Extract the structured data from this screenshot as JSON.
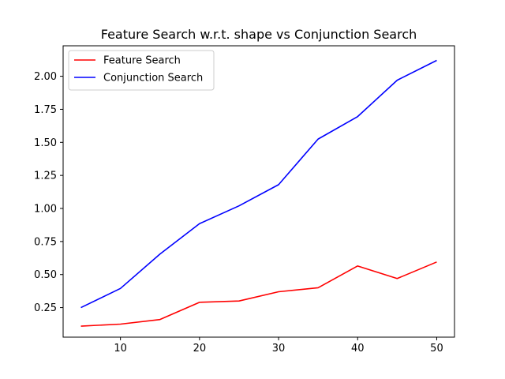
{
  "chart_data": {
    "type": "line",
    "title": "Feature Search w.r.t. shape vs Conjunction Search",
    "xlabel": "",
    "ylabel": "",
    "x": [
      5,
      10,
      15,
      20,
      25,
      30,
      35,
      40,
      45,
      50
    ],
    "xlim": [
      2.75,
      52.25
    ],
    "ylim": [
      0.0265,
      2.2305
    ],
    "xticks": [
      10,
      20,
      30,
      40,
      50
    ],
    "yticks": [
      0.25,
      0.5,
      0.75,
      1.0,
      1.25,
      1.5,
      1.75,
      2.0
    ],
    "ytick_labels": [
      "0.25",
      "0.50",
      "0.75",
      "1.00",
      "1.25",
      "1.50",
      "1.75",
      "2.00"
    ],
    "grid": false,
    "legend_position": "upper-left",
    "series": [
      {
        "name": "Feature Search",
        "color": "#ff0000",
        "values": [
          0.11,
          0.125,
          0.16,
          0.29,
          0.3,
          0.37,
          0.4,
          0.565,
          0.47,
          0.595
        ]
      },
      {
        "name": "Conjunction Search",
        "color": "#0000ff",
        "values": [
          0.25,
          0.395,
          0.655,
          0.885,
          1.02,
          1.18,
          1.525,
          1.695,
          1.97,
          2.12
        ]
      }
    ]
  }
}
